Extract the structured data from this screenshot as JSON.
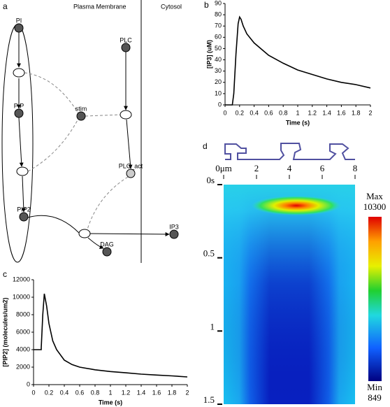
{
  "diagram": {
    "panel_label": "a",
    "regions": [
      "Plasma Membrane",
      "Cytosol"
    ],
    "nodes": [
      {
        "label": "PI"
      },
      {
        "label": "PIP"
      },
      {
        "label": "PIP2"
      },
      {
        "label": "stim"
      },
      {
        "label": "PLC"
      },
      {
        "label": "PLC_act"
      },
      {
        "label": "DAG"
      },
      {
        "label": "IP3"
      }
    ]
  },
  "chart_data": [
    {
      "type": "line",
      "panel_label": "b",
      "x_label": "Time (s)",
      "y_label": "[IP3] (uM)",
      "color": "#000000",
      "x": [
        0,
        0.1,
        0.12,
        0.15,
        0.18,
        0.2,
        0.22,
        0.25,
        0.3,
        0.4,
        0.6,
        0.8,
        1,
        1.2,
        1.4,
        1.6,
        1.8,
        2
      ],
      "values": [
        0,
        0,
        10,
        45,
        72,
        78,
        76,
        70,
        63,
        55,
        44,
        37,
        31,
        27,
        23,
        20,
        18,
        15
      ],
      "xlim": [
        0,
        2
      ],
      "xticks": [
        0,
        0.2,
        0.4,
        0.6,
        0.8,
        1,
        1.2,
        1.4,
        1.6,
        1.8,
        2
      ],
      "ylim": [
        0,
        90
      ],
      "yticks": [
        0,
        10,
        20,
        30,
        40,
        50,
        60,
        70,
        80,
        90
      ]
    },
    {
      "type": "line",
      "panel_label": "c",
      "x_label": "Time (s)",
      "y_label": "[PIP2] (molecules/um2)",
      "color": "#000000",
      "x": [
        0,
        0.1,
        0.1,
        0.12,
        0.14,
        0.17,
        0.2,
        0.25,
        0.3,
        0.4,
        0.5,
        0.6,
        0.8,
        1,
        1.2,
        1.4,
        1.6,
        1.8,
        2
      ],
      "values": [
        4000,
        4000,
        4200,
        8000,
        10400,
        9000,
        7000,
        5000,
        4000,
        2800,
        2300,
        2000,
        1700,
        1500,
        1350,
        1200,
        1100,
        1000,
        880
      ],
      "xlim": [
        0,
        2
      ],
      "xticks": [
        0,
        0.2,
        0.4,
        0.6,
        0.8,
        1,
        1.2,
        1.4,
        1.6,
        1.8,
        2
      ],
      "ylim": [
        0,
        12000
      ],
      "yticks": [
        0,
        2000,
        4000,
        6000,
        8000,
        10000,
        12000
      ]
    },
    {
      "type": "heatmap",
      "panel_label": "d",
      "xlim": [
        0,
        8
      ],
      "xticks": [
        {
          "value": 0,
          "label": "0μm"
        },
        2,
        4,
        6,
        8
      ],
      "ylim": [
        0,
        1.5
      ],
      "yticks": [
        {
          "value": 0,
          "label": "0s"
        },
        0.5,
        1,
        1.5
      ],
      "colorbar": {
        "max_label": "Max",
        "max": 10300,
        "min_label": "Min",
        "min": 849
      }
    }
  ]
}
